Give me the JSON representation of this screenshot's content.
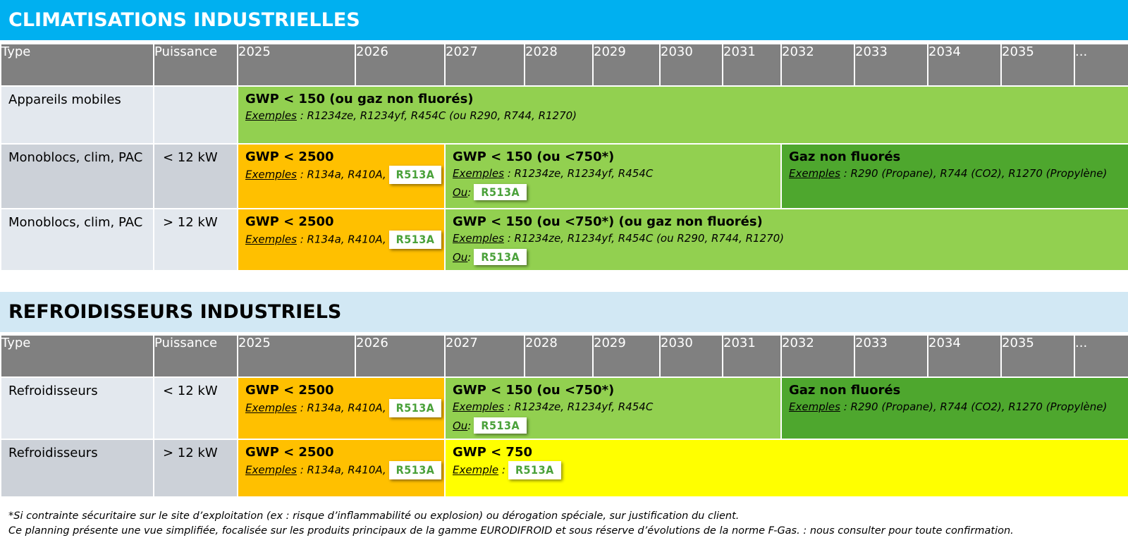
{
  "section1": {
    "title": "CLIMATISATIONS INDUSTRIELLES",
    "header": [
      "Type",
      "Puissance",
      "2025",
      "2026",
      "2027",
      "2028",
      "2029",
      "2030",
      "2031",
      "2032",
      "2033",
      "2034",
      "2035",
      "..."
    ],
    "rows": [
      {
        "type": "Appareils mobiles",
        "power": "",
        "blocks": [
          {
            "gwp": "GWP < 150 (ou gaz non fluorés)",
            "ex_label": "Exemples",
            "ex_text": " : R1234ze, R1234yf, R454C (ou R290, R744, R1270)"
          }
        ]
      },
      {
        "type": "Monoblocs, clim, PAC",
        "power": "< 12 kW",
        "blocks": [
          {
            "gwp": "GWP < 2500",
            "ex_label": "Exemples",
            "ex_text": " : R134a, R410A,",
            "badge": "R513A"
          },
          {
            "gwp": "GWP < 150 (ou <750*)",
            "ex_label": "Exemples",
            "ex_text": " : R1234ze, R1234yf, R454C",
            "ou_label": "Ou",
            "ou_sep": " :",
            "badge": "R513A"
          },
          {
            "gwp": "Gaz non fluorés",
            "ex_label": "Exemples",
            "ex_text": " : R290 (Propane), R744 (CO2), R1270 (Propylène)"
          }
        ]
      },
      {
        "type": "Monoblocs, clim, PAC",
        "power": "> 12 kW",
        "blocks": [
          {
            "gwp": "GWP < 2500",
            "ex_label": "Exemples",
            "ex_text": " : R134a, R410A,",
            "badge": "R513A"
          },
          {
            "gwp": "GWP < 150 (ou <750*) (ou gaz non fluorés)",
            "ex_label": "Exemples",
            "ex_text": " : R1234ze, R1234yf, R454C (ou R290, R744, R1270)",
            "ou_label": "Ou",
            "ou_sep": " :",
            "badge": "R513A"
          }
        ]
      }
    ]
  },
  "section2": {
    "title": "REFROIDISSEURS INDUSTRIELS",
    "header": [
      "Type",
      "Puissance",
      "2025",
      "2026",
      "2027",
      "2028",
      "2029",
      "2030",
      "2031",
      "2032",
      "2033",
      "2034",
      "2035",
      "..."
    ],
    "rows": [
      {
        "type": "Refroidisseurs",
        "power": "< 12 kW",
        "blocks": [
          {
            "gwp": "GWP < 2500",
            "ex_label": "Exemples",
            "ex_text": " : R134a, R410A,",
            "badge": "R513A"
          },
          {
            "gwp": "GWP < 150 (ou <750*)",
            "ex_label": "Exemples",
            "ex_text": " : R1234ze, R1234yf, R454C",
            "ou_label": "Ou",
            "ou_sep": " :",
            "badge": "R513A"
          },
          {
            "gwp": "Gaz non fluorés",
            "ex_label": "Exemples",
            "ex_text": " : R290 (Propane), R744 (CO2), R1270 (Propylène)"
          }
        ]
      },
      {
        "type": "Refroidisseurs",
        "power": "> 12 kW",
        "blocks": [
          {
            "gwp": "GWP < 2500",
            "ex_label": "Exemples",
            "ex_text": " : R134a, R410A,",
            "badge": "R513A"
          },
          {
            "gwp": "GWP < 750",
            "ex_label": "Exemple",
            "ex_text": " :",
            "badge": "R513A"
          }
        ]
      }
    ]
  },
  "footer": {
    "line1": "*Si contrainte sécuritaire sur le site d’exploitation (ex : risque d’inflammabilité ou explosion) ou dérogation spéciale, sur justification du client.",
    "line2": "Ce planning présente une vue simplifiée, focalisée sur les produits principaux de la gamme EURODIFROID et sous réserve d’évolutions de la norme F-Gas. : nous consulter pour toute confirmation."
  },
  "colors": {
    "banner_blue": "#00b0f0",
    "banner_light": "#d2e8f4",
    "header_gray": "#808080",
    "orange": "#ffc000",
    "light_green": "#92d050",
    "dark_green": "#4ea72e",
    "yellow": "#ffff00",
    "badge_text": "#4aa13a"
  }
}
